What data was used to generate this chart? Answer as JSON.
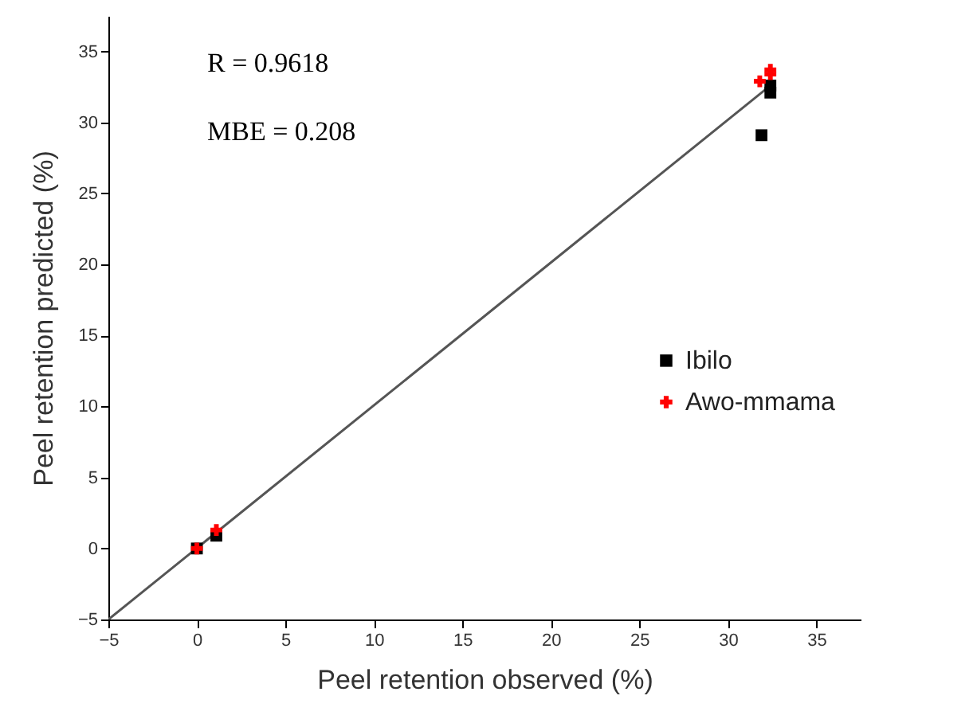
{
  "chart_data": {
    "type": "scatter",
    "xlabel": "Peel retention observed (%)",
    "ylabel": "Peel retention predicted (%)",
    "annotations": [
      "R = 0.9618",
      "MBE = 0.208"
    ],
    "xlim": [
      -5,
      37.5
    ],
    "xticks": [
      -5,
      0,
      5,
      10,
      15,
      20,
      25,
      30,
      35
    ],
    "ylim": [
      -5,
      37.5
    ],
    "yticks": [
      -5,
      0,
      5,
      10,
      15,
      20,
      25,
      30,
      35
    ],
    "grid": false,
    "legend": "right",
    "series": [
      {
        "type": "line",
        "color": "#555555",
        "x": [
          -5,
          32.5
        ],
        "values": [
          -5,
          32.7
        ],
        "line_style": "solid"
      },
      {
        "name": "Ibilo",
        "color": "#000000",
        "marker": "square",
        "x": [
          0,
          1.1,
          31.9,
          32.4,
          32.4
        ],
        "values": [
          0,
          0.9,
          29.1,
          32.1,
          32.6
        ]
      },
      {
        "name": "Awo-mmama",
        "color": "#ff0000",
        "marker": "cross",
        "x": [
          0,
          1.1,
          31.8,
          32.4,
          32.4
        ],
        "values": [
          0,
          1.3,
          32.9,
          33.4,
          33.7
        ]
      }
    ]
  }
}
